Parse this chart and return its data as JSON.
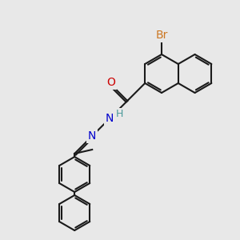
{
  "bg_color": "#e8e8e8",
  "bond_color": "#1a1a1a",
  "bond_width": 1.5,
  "atom_colors": {
    "Br": "#cc7722",
    "O": "#cc0000",
    "N": "#0000cc",
    "H": "#4a9a9a",
    "C": "#1a1a1a"
  },
  "font_size": 9
}
